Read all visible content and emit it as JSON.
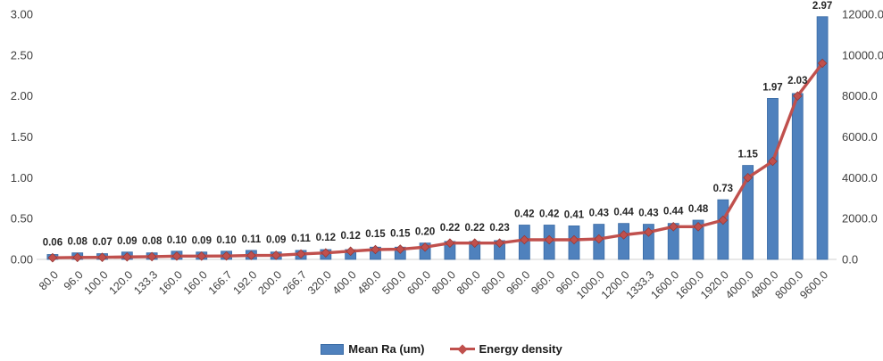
{
  "chart_data": {
    "type": "bar",
    "subtype": "bar-line-combo",
    "title": "",
    "xlabel": "",
    "ylabel_left": "",
    "ylabel_right": "",
    "grid": false,
    "legend_position": "bottom",
    "categories": [
      "80.0",
      "96.0",
      "100.0",
      "120.0",
      "133.3",
      "160.0",
      "160.0",
      "166.7",
      "192.0",
      "200.0",
      "266.7",
      "320.0",
      "400.0",
      "480.0",
      "500.0",
      "600.0",
      "800.0",
      "800.0",
      "800.0",
      "960.0",
      "960.0",
      "960.0",
      "1000.0",
      "1200.0",
      "1333.3",
      "1600.0",
      "1600.0",
      "1920.0",
      "4000.0",
      "4800.0",
      "8000.0",
      "9600.0"
    ],
    "series": [
      {
        "name": "Mean Ra (um)",
        "type": "bar",
        "axis": "left",
        "color": "#4f81bd",
        "values": [
          0.06,
          0.08,
          0.07,
          0.09,
          0.08,
          0.1,
          0.09,
          0.1,
          0.11,
          0.09,
          0.11,
          0.12,
          0.12,
          0.15,
          0.15,
          0.2,
          0.22,
          0.22,
          0.23,
          0.42,
          0.42,
          0.41,
          0.43,
          0.44,
          0.43,
          0.44,
          0.48,
          0.73,
          1.15,
          1.97,
          2.03,
          2.97
        ],
        "data_labels": [
          "0.06",
          "0.08",
          "0.07",
          "0.09",
          "0.08",
          "0.10",
          "0.09",
          "0.10",
          "0.11",
          "0.09",
          "0.11",
          "0.12",
          "0.12",
          "0.15",
          "0.15",
          "0.20",
          "0.22",
          "0.22",
          "0.23",
          "0.42",
          "0.42",
          "0.41",
          "0.43",
          "0.44",
          "0.43",
          "0.44",
          "0.48",
          "0.73",
          "1.15",
          "1.97",
          "2.03",
          "2.97"
        ]
      },
      {
        "name": "Energy density",
        "type": "line",
        "axis": "right",
        "color": "#c0504d",
        "values": [
          80,
          96,
          100,
          120,
          133.3,
          160,
          160,
          166.7,
          192,
          200,
          266.7,
          320,
          400,
          480,
          500,
          600,
          800,
          800,
          800,
          960,
          960,
          960,
          1000,
          1200,
          1333.3,
          1600,
          1600,
          1920,
          4000,
          4800,
          8000,
          9600
        ]
      }
    ],
    "left_axis": {
      "min": 0,
      "max": 3,
      "ticks": [
        "0.00",
        "0.50",
        "1.00",
        "1.50",
        "2.00",
        "2.50",
        "3.00"
      ]
    },
    "right_axis": {
      "min": 0,
      "max": 12000,
      "ticks": [
        "0.0",
        "2000.0",
        "4000.0",
        "6000.0",
        "8000.0",
        "10000.0",
        "12000.0"
      ]
    }
  },
  "colors": {
    "bar": "#4f81bd",
    "bar_border": "#3a6ba5",
    "line": "#c0504d",
    "marker_border": "#943634",
    "axis_text": "#404040",
    "label_text": "#262626",
    "axis_line": "#d9d9d9"
  }
}
